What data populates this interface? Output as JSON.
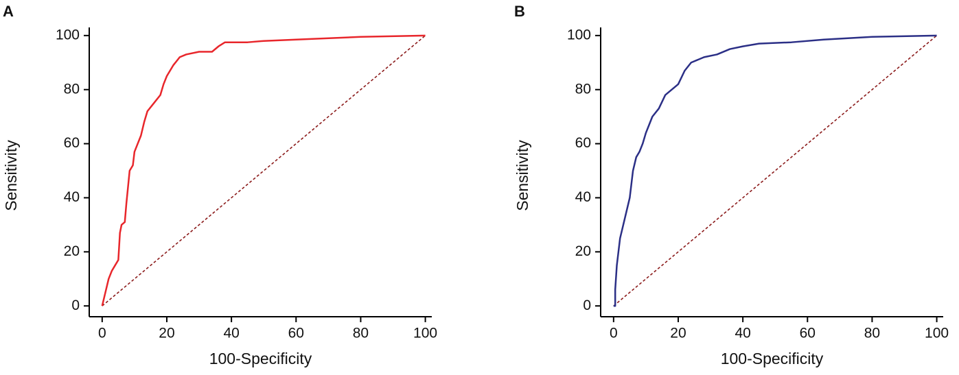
{
  "chart_data": [
    {
      "type": "line",
      "panel": "A",
      "xlabel": "100-Specificity",
      "ylabel": "Sensitivity",
      "xlim": [
        -4,
        102
      ],
      "ylim": [
        -4,
        103
      ],
      "xticks": [
        0,
        20,
        40,
        60,
        80,
        100
      ],
      "yticks": [
        0,
        20,
        40,
        60,
        80,
        100
      ],
      "series": [
        {
          "color": "#e8262b",
          "x": [
            0,
            1,
            2,
            3,
            4,
            5,
            5.5,
            6,
            7,
            7.5,
            8.5,
            9.5,
            10,
            11,
            12,
            13,
            14,
            16,
            18,
            19,
            20,
            22,
            24,
            26,
            30,
            34,
            36,
            38,
            45,
            50,
            60,
            80,
            100
          ],
          "values": [
            0,
            5,
            10,
            13,
            15,
            17,
            27,
            30,
            31,
            38,
            50,
            52,
            57,
            60,
            63,
            68,
            72,
            75,
            78,
            82,
            85,
            89,
            92,
            93,
            94,
            94,
            96,
            97.5,
            97.5,
            98,
            98.5,
            99.5,
            100
          ]
        }
      ],
      "reference_line": {
        "color": "#8b1a1a",
        "x": [
          0,
          100
        ],
        "values": [
          0,
          100
        ]
      }
    },
    {
      "type": "line",
      "panel": "B",
      "xlabel": "100-Specificity",
      "ylabel": "Sensitivity",
      "xlim": [
        -4,
        102
      ],
      "ylim": [
        -4,
        103
      ],
      "xticks": [
        0,
        20,
        40,
        60,
        80,
        100
      ],
      "yticks": [
        0,
        20,
        40,
        60,
        80,
        100
      ],
      "series": [
        {
          "color": "#2b2f86",
          "x": [
            0,
            0.5,
            0.5,
            1,
            1.5,
            2,
            3,
            4,
            5,
            5.5,
            6,
            7,
            8,
            9,
            10,
            11,
            12,
            14,
            16,
            18,
            20,
            22,
            24,
            28,
            32,
            36,
            40,
            45,
            55,
            65,
            80,
            100
          ],
          "values": [
            0,
            0,
            6,
            15,
            20,
            25,
            30,
            35,
            40,
            45,
            50,
            55,
            57,
            60,
            64,
            67,
            70,
            73,
            78,
            80,
            82,
            87,
            90,
            92,
            93,
            95,
            96,
            97,
            97.5,
            98.5,
            99.5,
            100
          ]
        }
      ],
      "reference_line": {
        "color": "#8b1a1a",
        "x": [
          0,
          100
        ],
        "values": [
          0,
          100
        ]
      }
    }
  ]
}
